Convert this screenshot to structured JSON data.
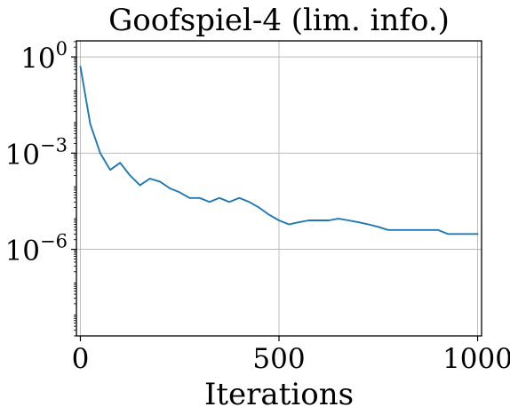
{
  "chart_data": {
    "type": "line",
    "title": "Goofspiel-4 (lim. info.)",
    "xlabel": "Iterations",
    "ylabel": "",
    "xlim": [
      -10,
      1010
    ],
    "ylim_log10": [
      -8.7,
      0.5
    ],
    "yscale": "log",
    "grid": true,
    "legend": "none",
    "x_ticks": [
      {
        "value": 0,
        "label": "0"
      },
      {
        "value": 500,
        "label": "500"
      },
      {
        "value": 1000,
        "label": "1000"
      }
    ],
    "y_ticks": [
      {
        "value_log10": 0,
        "base": "10",
        "exp": "0"
      },
      {
        "value_log10": -3,
        "base": "10",
        "exp": "−3"
      },
      {
        "value_log10": -6,
        "base": "10",
        "exp": "−6"
      }
    ],
    "series": [
      {
        "color": "#1f77b4",
        "dash": "solid",
        "x": [
          0,
          25,
          50,
          75,
          100,
          125,
          150,
          175,
          200,
          225,
          250,
          275,
          300,
          325,
          350,
          375,
          400,
          425,
          450,
          475,
          500,
          525,
          550,
          575,
          600,
          625,
          650,
          675,
          700,
          725,
          750,
          775,
          800,
          825,
          850,
          875,
          900,
          925,
          950,
          975,
          1000
        ],
        "y": [
          0.5,
          0.008,
          0.001,
          0.0003,
          0.0005,
          0.0002,
          0.0001,
          0.00016,
          0.00013,
          8e-05,
          6e-05,
          4e-05,
          4e-05,
          3e-05,
          4e-05,
          3e-05,
          4e-05,
          3e-05,
          2e-05,
          1.2e-05,
          8e-06,
          6e-06,
          7e-06,
          8e-06,
          8e-06,
          8e-06,
          9e-06,
          8e-06,
          7e-06,
          6e-06,
          5e-06,
          4e-06,
          4e-06,
          4e-06,
          4e-06,
          4e-06,
          4e-06,
          3e-06,
          3e-06,
          3e-06,
          3e-06
        ]
      }
    ]
  }
}
